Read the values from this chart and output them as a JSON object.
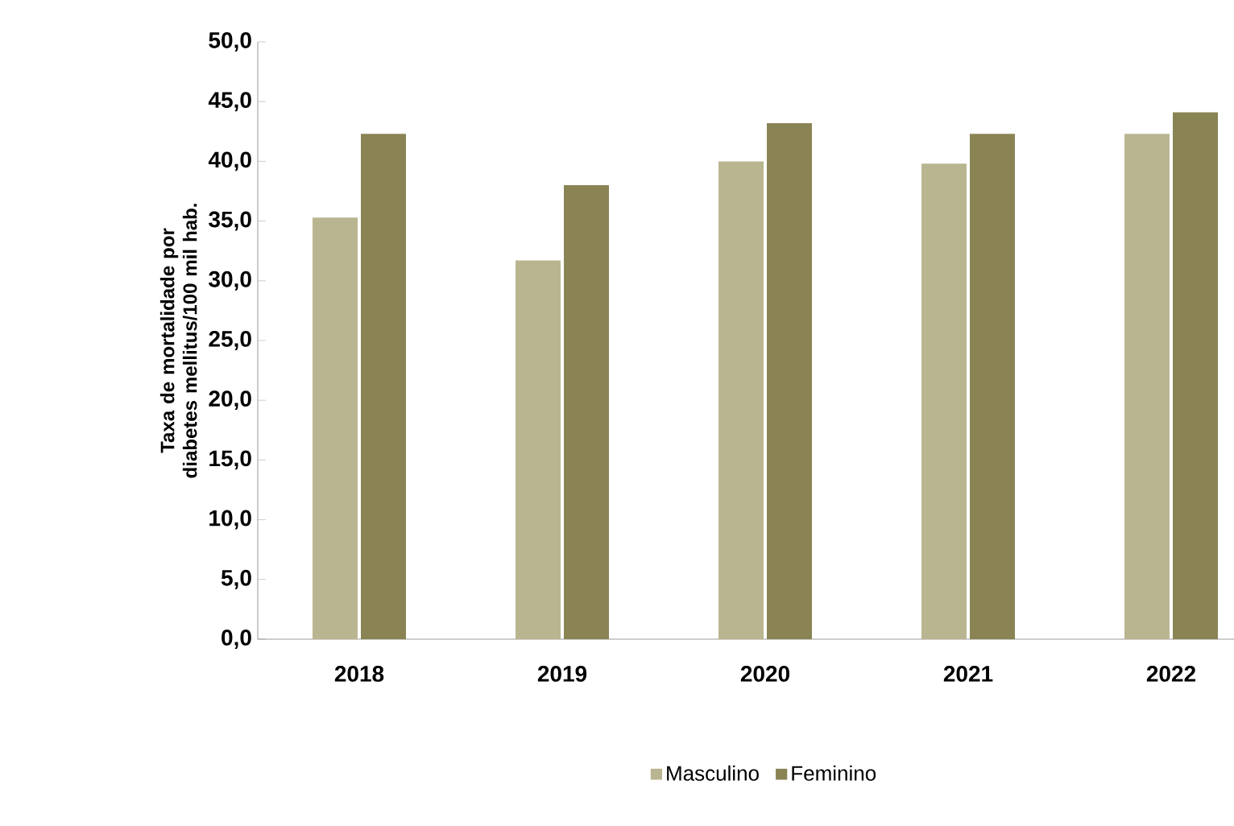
{
  "chart_data": {
    "type": "bar",
    "ylabel": "Taxa de mortalidade por diabetes mellitus/100 mil hab.",
    "categories": [
      "2018",
      "2019",
      "2020",
      "2021",
      "2022"
    ],
    "series": [
      {
        "name": "Masculino",
        "color": "#bab591",
        "values": [
          35.3,
          31.7,
          40.0,
          39.8,
          42.3
        ]
      },
      {
        "name": "Feminino",
        "color": "#8a8455",
        "values": [
          42.3,
          38.0,
          43.2,
          42.3,
          44.1
        ]
      }
    ],
    "ylim": [
      0,
      50
    ],
    "yticks": [
      {
        "value": 0,
        "label": "0,0"
      },
      {
        "value": 5,
        "label": "5,0"
      },
      {
        "value": 10,
        "label": "10,0"
      },
      {
        "value": 15,
        "label": "15,0"
      },
      {
        "value": 20,
        "label": "20,0"
      },
      {
        "value": 25,
        "label": "25,0"
      },
      {
        "value": 30,
        "label": "30,0"
      },
      {
        "value": 35,
        "label": "35,0"
      },
      {
        "value": 40,
        "label": "40,0"
      },
      {
        "value": 45,
        "label": "45,0"
      },
      {
        "value": 50,
        "label": "50,0"
      }
    ],
    "grid": false,
    "legend": "bottom"
  }
}
